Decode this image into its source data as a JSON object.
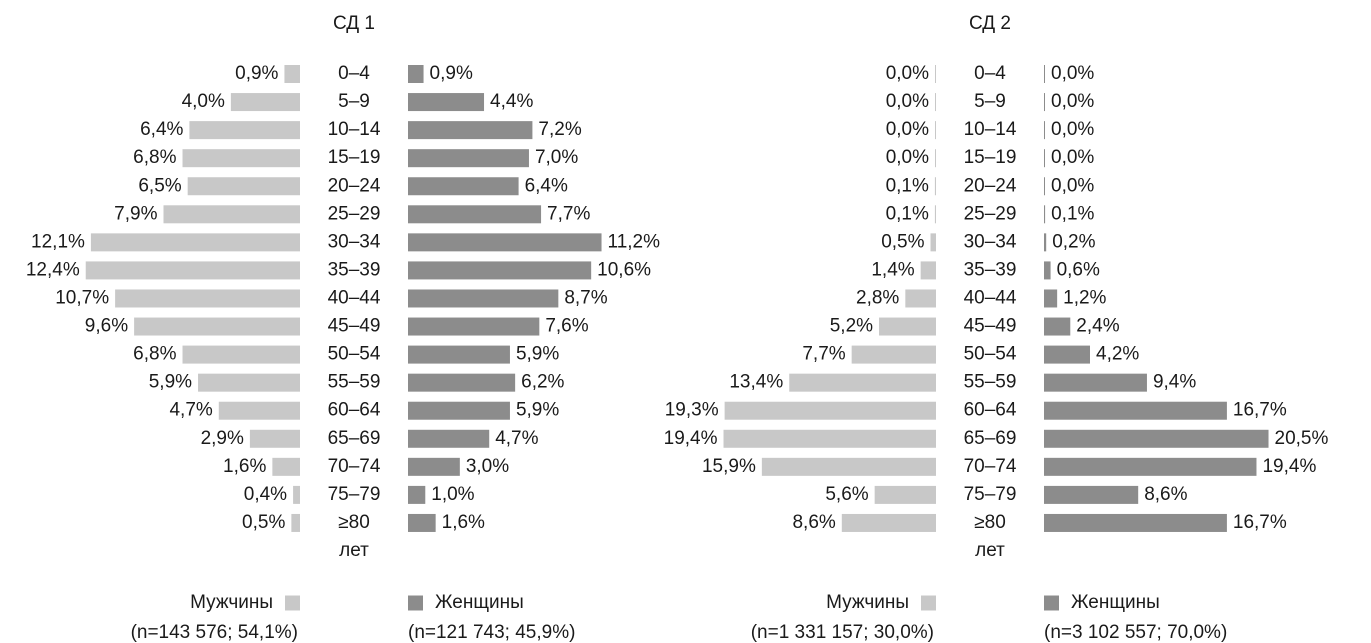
{
  "chart_data": [
    {
      "type": "population-pyramid",
      "title": "СД 1",
      "unit_label": "лет",
      "categories": [
        "0–4",
        "5–9",
        "10–14",
        "15–19",
        "20–24",
        "25–29",
        "30–34",
        "35–39",
        "40–44",
        "45–49",
        "50–54",
        "55–59",
        "60–64",
        "65–69",
        "70–74",
        "75–79",
        "≥80"
      ],
      "xlim": [
        0,
        12.5
      ],
      "series": [
        {
          "name": "Мужчины",
          "sample": "(n=143 576; 54,1%)",
          "color": "#c8c8c8",
          "values": [
            0.9,
            4.0,
            6.4,
            6.8,
            6.5,
            7.9,
            12.1,
            12.4,
            10.7,
            9.6,
            6.8,
            5.9,
            4.7,
            2.9,
            1.6,
            0.4,
            0.5
          ],
          "value_labels": [
            "0,9%",
            "4,0%",
            "6,4%",
            "6,8%",
            "6,5%",
            "7,9%",
            "12,1%",
            "12,4%",
            "10,7%",
            "9,6%",
            "6,8%",
            "5,9%",
            "4,7%",
            "2,9%",
            "1,6%",
            "0,4%",
            "0,5%"
          ]
        },
        {
          "name": "Женщины",
          "sample": "(n=121 743; 45,9%)",
          "color": "#8c8c8c",
          "values": [
            0.9,
            4.4,
            7.2,
            7.0,
            6.4,
            7.7,
            11.2,
            10.6,
            8.7,
            7.6,
            5.9,
            6.2,
            5.9,
            4.7,
            3.0,
            1.0,
            1.6
          ],
          "value_labels": [
            "0,9%",
            "4,4%",
            "7,2%",
            "7,0%",
            "6,4%",
            "7,7%",
            "11,2%",
            "10,6%",
            "8,7%",
            "7,6%",
            "5,9%",
            "6,2%",
            "5,9%",
            "4,7%",
            "3,0%",
            "1,0%",
            "1,6%"
          ]
        }
      ]
    },
    {
      "type": "population-pyramid",
      "title": "СД 2",
      "unit_label": "лет",
      "categories": [
        "0–4",
        "5–9",
        "10–14",
        "15–19",
        "20–24",
        "25–29",
        "30–34",
        "35–39",
        "40–44",
        "45–49",
        "50–54",
        "55–59",
        "60–64",
        "65–69",
        "70–74",
        "75–79",
        "≥80"
      ],
      "xlim": [
        0,
        21
      ],
      "series": [
        {
          "name": "Мужчины",
          "sample": "(n=1 331 157; 30,0%)",
          "color": "#c8c8c8",
          "values": [
            0.0,
            0.0,
            0.0,
            0.0,
            0.1,
            0.1,
            0.5,
            1.4,
            2.8,
            5.2,
            7.7,
            13.4,
            19.3,
            19.4,
            15.9,
            5.6,
            8.6
          ],
          "value_labels": [
            "0,0%",
            "0,0%",
            "0,0%",
            "0,0%",
            "0,1%",
            "0,1%",
            "0,5%",
            "1,4%",
            "2,8%",
            "5,2%",
            "7,7%",
            "13,4%",
            "19,3%",
            "19,4%",
            "15,9%",
            "5,6%",
            "8,6%"
          ]
        },
        {
          "name": "Женщины",
          "sample": "(n=3 102 557; 70,0%)",
          "color": "#8c8c8c",
          "values": [
            0.0,
            0.0,
            0.0,
            0.0,
            0.0,
            0.1,
            0.2,
            0.6,
            1.2,
            2.4,
            4.2,
            9.4,
            16.7,
            20.5,
            19.4,
            8.6,
            16.7
          ],
          "value_labels": [
            "0,0%",
            "0,0%",
            "0,0%",
            "0,0%",
            "0,0%",
            "0,1%",
            "0,2%",
            "0,6%",
            "1,2%",
            "2,4%",
            "4,2%",
            "9,4%",
            "16,7%",
            "20,5%",
            "19,4%",
            "8,6%",
            "16,7%"
          ]
        }
      ]
    }
  ]
}
